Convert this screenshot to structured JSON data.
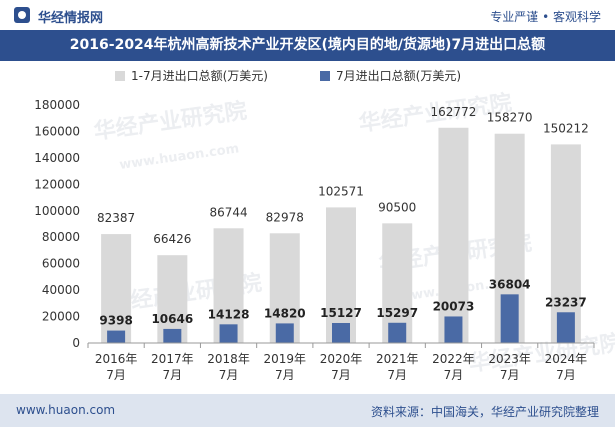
{
  "header": {
    "brand": "华经情报网",
    "tagline": "专业严谨 • 客观科学"
  },
  "title": "2016-2024年杭州高新技术产业开发区(境内目的地/货源地)7月进出口总额",
  "footer": {
    "site": "www.huaon.com",
    "source": "资料来源：中国海关，华经产业研究院整理"
  },
  "watermark": {
    "main": "华经产业研究院",
    "url": "www.huaon.com"
  },
  "colors": {
    "brand": "#2d4f8e",
    "series1": "#d9d9d9",
    "series2": "#4a6aa5",
    "footer_bg": "#dde4ef"
  },
  "chart_data": {
    "type": "bar",
    "categories": [
      "2016年\n7月",
      "2017年\n7月",
      "2018年\n7月",
      "2019年\n7月",
      "2020年\n7月",
      "2021年\n7月",
      "2022年\n7月",
      "2023年\n7月",
      "2024年\n7月"
    ],
    "series": [
      {
        "name": "1-7月进出口总额(万美元)",
        "values": [
          82387,
          66426,
          86744,
          82978,
          102571,
          90500,
          162772,
          158270,
          150212
        ]
      },
      {
        "name": "7月进出口总额(万美元)",
        "values": [
          9398,
          10646,
          14128,
          14820,
          15127,
          15297,
          20073,
          36804,
          23237
        ]
      }
    ],
    "ylim": [
      0,
      180000
    ],
    "yticks": [
      0,
      20000,
      40000,
      60000,
      80000,
      100000,
      120000,
      140000,
      160000,
      180000
    ],
    "legend_position": "top-left",
    "grid": false
  }
}
